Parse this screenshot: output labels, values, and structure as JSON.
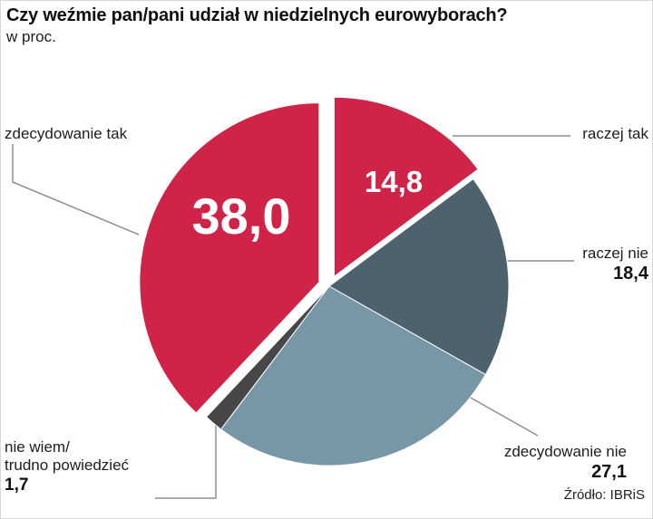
{
  "header": {
    "title": "Czy weźmie pan/pani udział w niedzielnych eurowyborach?",
    "subtitle": "w proc."
  },
  "source": "Źródło: IBRiS",
  "chart_data": {
    "type": "pie",
    "title": "Czy weźmie pan/pani udział w niedzielnych eurowyborach?",
    "unit_note": "w proc.",
    "direction": "clockwise",
    "start_angle_deg": 0,
    "total": 100.0,
    "legend_position": "callouts",
    "slices": [
      {
        "label": "raczej tak",
        "value": 14.8,
        "display": "14,8",
        "color": "#cf2348",
        "exploded": true
      },
      {
        "label": "raczej nie",
        "value": 18.4,
        "display": "18,4",
        "color": "#4d626d",
        "exploded": false
      },
      {
        "label": "zdecydowanie nie",
        "value": 27.1,
        "display": "27,1",
        "color": "#7897a6",
        "exploded": false
      },
      {
        "label": "nie wiem/trudno powiedzieć",
        "label_lines": [
          "nie wiem/",
          "trudno powiedzieć"
        ],
        "value": 1.7,
        "display": "1,7",
        "color": "#474747",
        "exploded": false
      },
      {
        "label": "zdecydowanie tak",
        "value": 38.0,
        "display": "38,0",
        "color": "#cf2348",
        "exploded": true
      }
    ],
    "source": "Źródło: IBRiS"
  }
}
